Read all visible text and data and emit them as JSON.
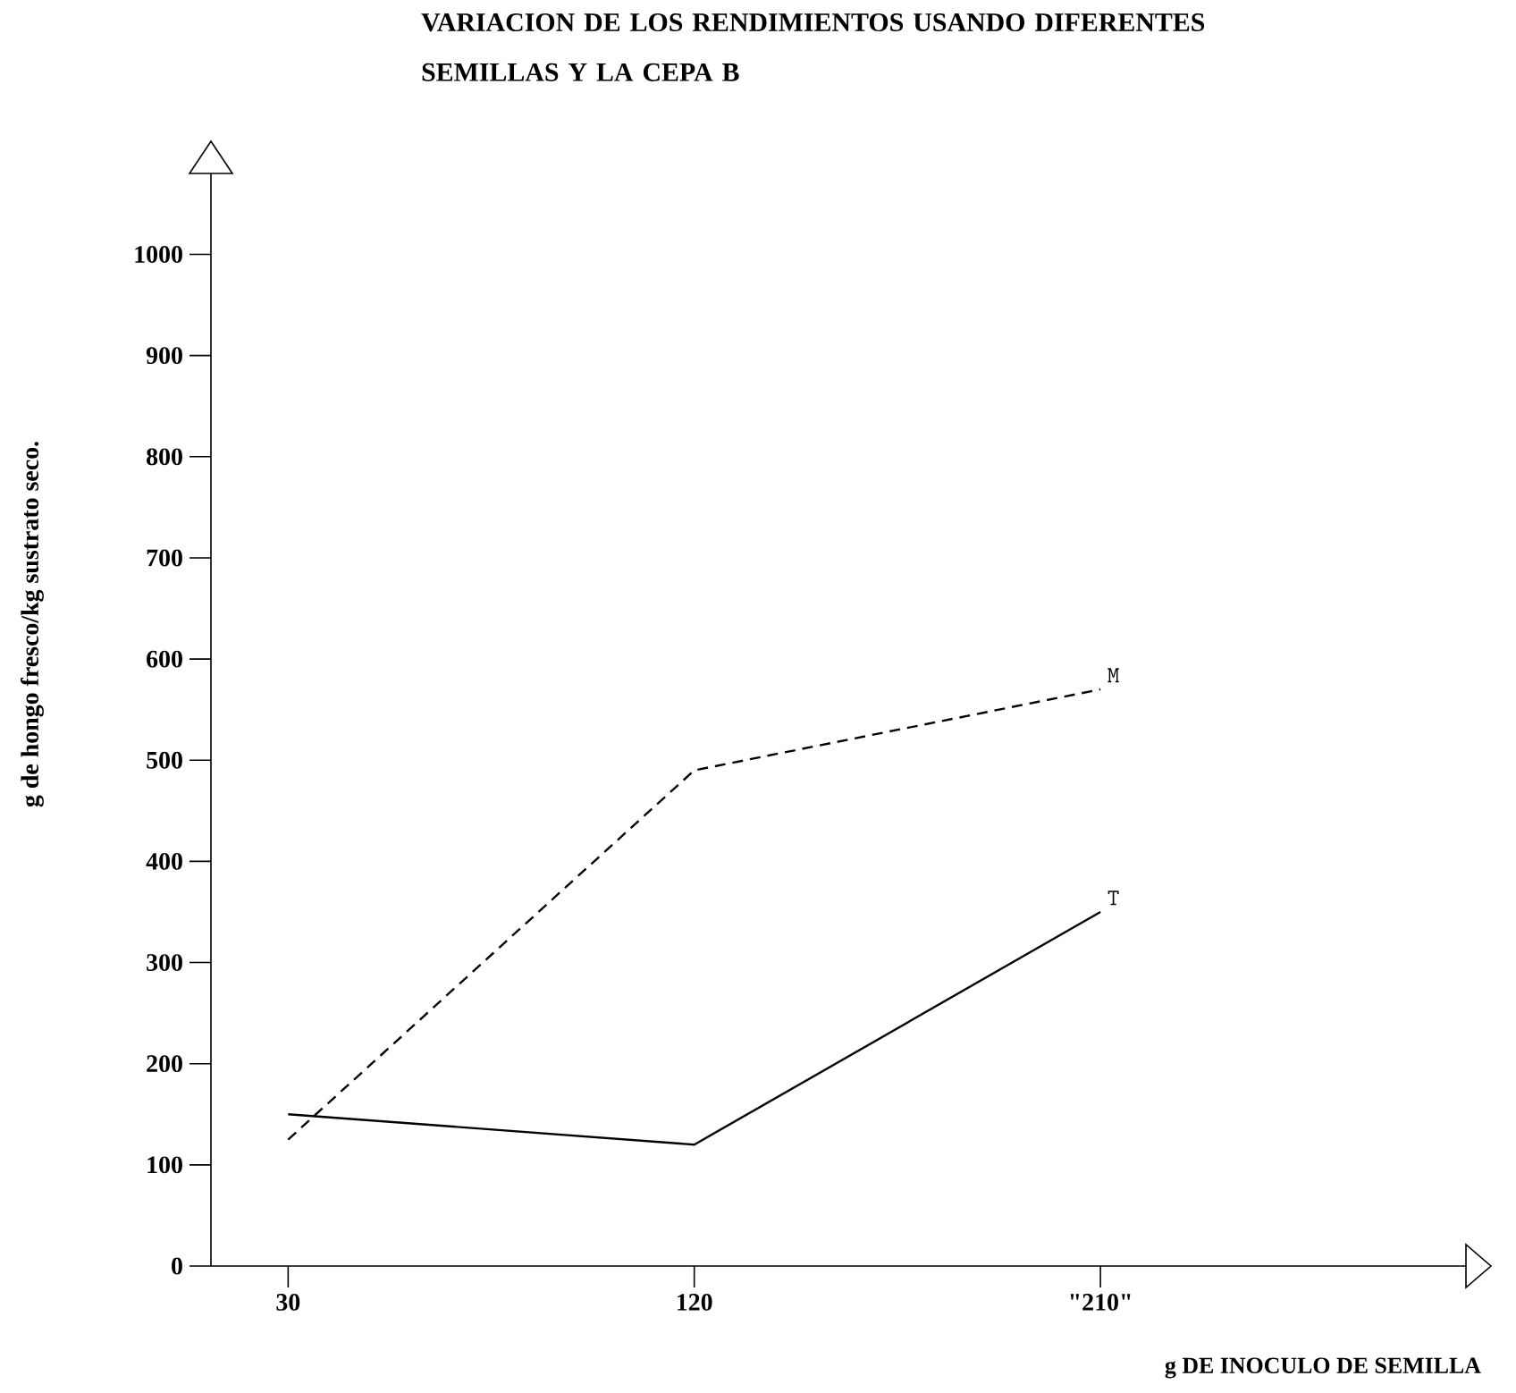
{
  "chart_data": {
    "type": "line",
    "title": "VARIACION DE LOS RENDIMIENTOS USANDO DIFERENTES SEMILLAS Y LA CEPA B",
    "xlabel": "g DE INOCULO DE SEMILLA",
    "ylabel": "g de hongo fresco/kg sustrato seco.",
    "categories": [
      "30",
      "120",
      "\"210\""
    ],
    "series": [
      {
        "name": "M",
        "color": "#000000",
        "line_style": "dashed",
        "values": [
          125,
          490,
          570
        ]
      },
      {
        "name": "T",
        "color": "#000000",
        "line_style": "solid",
        "values": [
          150,
          120,
          350
        ]
      }
    ],
    "ylim": [
      0,
      1080
    ],
    "yticks": [
      0,
      100,
      200,
      300,
      400,
      500,
      600,
      700,
      800,
      900,
      1000
    ],
    "grid": false
  }
}
